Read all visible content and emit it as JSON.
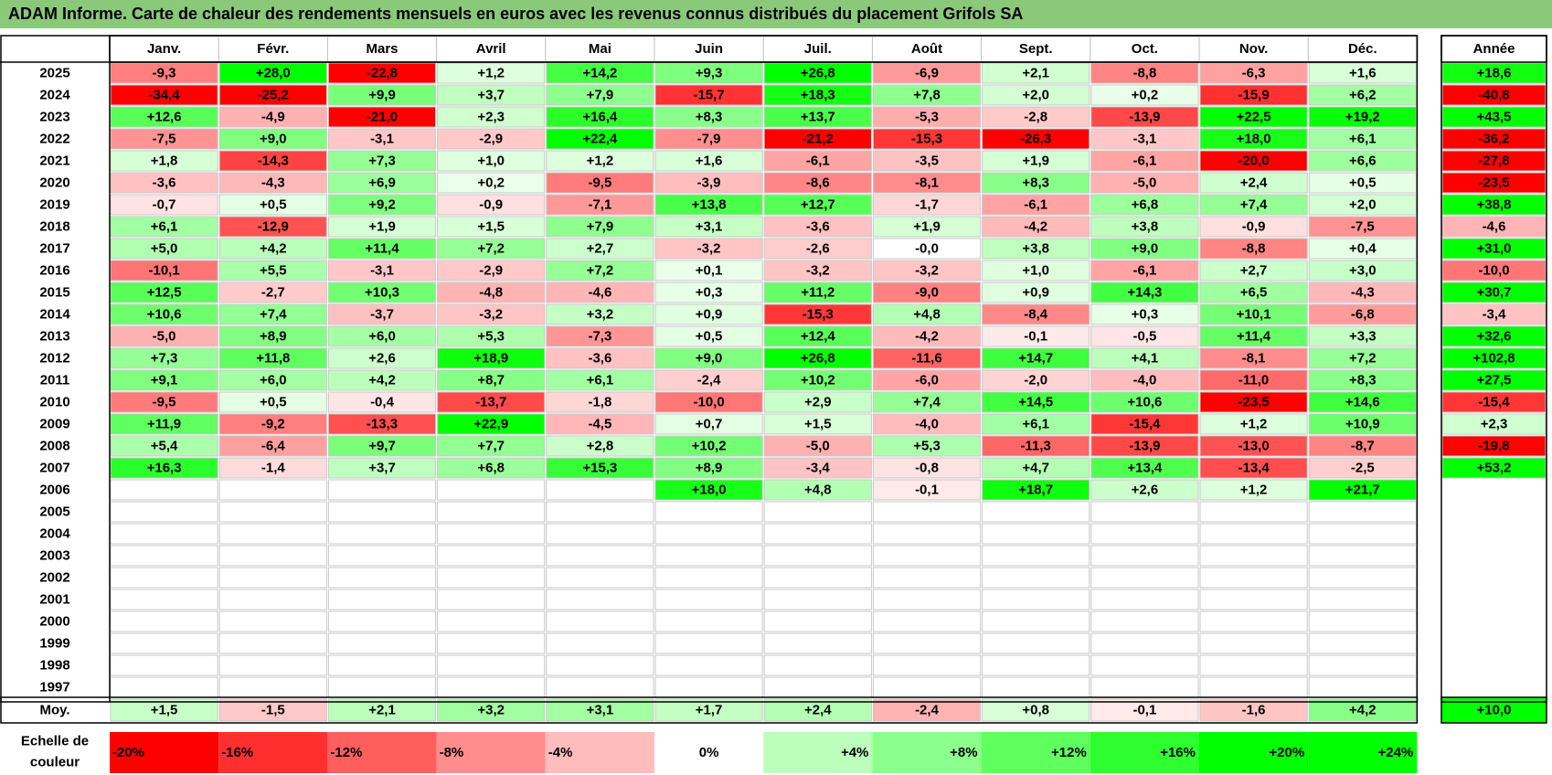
{
  "title": "ADAM Informe. Carte de chaleur des rendements mensuels en euros avec les revenus connus distribués du placement Grifols SA",
  "colors": {
    "title_bg": "#8bc97a",
    "max_red": "#ff0000",
    "max_green": "#00ff00",
    "neutral": "#ffffff",
    "grid": "#bfbfbf",
    "frame": "#000000"
  },
  "chart_data": {
    "type": "heatmap",
    "months": [
      "Janv.",
      "Févr.",
      "Mars",
      "Avril",
      "Mai",
      "Juin",
      "Juil.",
      "Août",
      "Sept.",
      "Oct.",
      "Nov.",
      "Déc."
    ],
    "year_label": "Année",
    "years": [
      "2025",
      "2024",
      "2023",
      "2022",
      "2021",
      "2020",
      "2019",
      "2018",
      "2017",
      "2016",
      "2015",
      "2014",
      "2013",
      "2012",
      "2011",
      "2010",
      "2009",
      "2008",
      "2007",
      "2006",
      "2005",
      "2004",
      "2003",
      "2002",
      "2001",
      "2000",
      "1999",
      "1998",
      "1997"
    ],
    "values": [
      [
        "-9,3",
        "+28,0",
        "-22,8",
        "+1,2",
        "+14,2",
        "+9,3",
        "+26,8",
        "-6,9",
        "+2,1",
        "-8,8",
        "-6,3",
        "+1,6"
      ],
      [
        "-34,4",
        "-25,2",
        "+9,9",
        "+3,7",
        "+7,9",
        "-15,7",
        "+18,3",
        "+7,8",
        "+2,0",
        "+0,2",
        "-15,9",
        "+6,2"
      ],
      [
        "+12,6",
        "-4,9",
        "-21,0",
        "+2,3",
        "+16,4",
        "+8,3",
        "+13,7",
        "-5,3",
        "-2,8",
        "-13,9",
        "+22,5",
        "+19,2"
      ],
      [
        "-7,5",
        "+9,0",
        "-3,1",
        "-2,9",
        "+22,4",
        "-7,9",
        "-21,2",
        "-15,3",
        "-26,3",
        "-3,1",
        "+18,0",
        "+6,1"
      ],
      [
        "+1,8",
        "-14,3",
        "+7,3",
        "+1,0",
        "+1,2",
        "+1,6",
        "-6,1",
        "-3,5",
        "+1,9",
        "-6,1",
        "-20,0",
        "+6,6"
      ],
      [
        "-3,6",
        "-4,3",
        "+6,9",
        "+0,2",
        "-9,5",
        "-3,9",
        "-8,6",
        "-8,1",
        "+8,3",
        "-5,0",
        "+2,4",
        "+0,5"
      ],
      [
        "-0,7",
        "+0,5",
        "+9,2",
        "-0,9",
        "-7,1",
        "+13,8",
        "+12,7",
        "-1,7",
        "-6,1",
        "+6,8",
        "+7,4",
        "+2,0"
      ],
      [
        "+6,1",
        "-12,9",
        "+1,9",
        "+1,5",
        "+7,9",
        "+3,1",
        "-3,6",
        "+1,9",
        "-4,2",
        "+3,8",
        "-0,9",
        "-7,5"
      ],
      [
        "+5,0",
        "+4,2",
        "+11,4",
        "+7,2",
        "+2,7",
        "-3,2",
        "-2,6",
        "-0,0",
        "+3,8",
        "+9,0",
        "-8,8",
        "+0,4"
      ],
      [
        "-10,1",
        "+5,5",
        "-3,1",
        "-2,9",
        "+7,2",
        "+0,1",
        "-3,2",
        "-3,2",
        "+1,0",
        "-6,1",
        "+2,7",
        "+3,0"
      ],
      [
        "+12,5",
        "-2,7",
        "+10,3",
        "-4,8",
        "-4,6",
        "+0,3",
        "+11,2",
        "-9,0",
        "+0,9",
        "+14,3",
        "+6,5",
        "-4,3"
      ],
      [
        "+10,6",
        "+7,4",
        "-3,7",
        "-3,2",
        "+3,2",
        "+0,9",
        "-15,3",
        "+4,8",
        "-8,4",
        "+0,3",
        "+10,1",
        "-6,8"
      ],
      [
        "-5,0",
        "+8,9",
        "+6,0",
        "+5,3",
        "-7,3",
        "+0,5",
        "+12,4",
        "-4,2",
        "-0,1",
        "-0,5",
        "+11,4",
        "+3,3"
      ],
      [
        "+7,3",
        "+11,8",
        "+2,6",
        "+18,9",
        "-3,6",
        "+9,0",
        "+26,8",
        "-11,6",
        "+14,7",
        "+4,1",
        "-8,1",
        "+7,2"
      ],
      [
        "+9,1",
        "+6,0",
        "+4,2",
        "+8,7",
        "+6,1",
        "-2,4",
        "+10,2",
        "-6,0",
        "-2,0",
        "-4,0",
        "-11,0",
        "+8,3"
      ],
      [
        "-9,5",
        "+0,5",
        "-0,4",
        "-13,7",
        "-1,8",
        "-10,0",
        "+2,9",
        "+7,4",
        "+14,5",
        "+10,6",
        "-23,5",
        "+14,6"
      ],
      [
        "+11,9",
        "-9,2",
        "-13,3",
        "+22,9",
        "-4,5",
        "+0,7",
        "+1,5",
        "-4,0",
        "+6,1",
        "-15,4",
        "+1,2",
        "+10,9"
      ],
      [
        "+5,4",
        "-6,4",
        "+9,7",
        "+7,7",
        "+2,8",
        "+10,2",
        "-5,0",
        "+5,3",
        "-11,3",
        "-13,9",
        "-13,0",
        "-8,7"
      ],
      [
        "+16,3",
        "-1,4",
        "+3,7",
        "+6,8",
        "+15,3",
        "+8,9",
        "-3,4",
        "-0,8",
        "+4,7",
        "+13,4",
        "-13,4",
        "-2,5"
      ],
      [
        "",
        "",
        "",
        "",
        "",
        "+18,0",
        "+4,8",
        "-0,1",
        "+18,7",
        "+2,6",
        "+1,2",
        "+21,7"
      ],
      [
        "",
        "",
        "",
        "",
        "",
        "",
        "",
        "",
        "",
        "",
        "",
        ""
      ],
      [
        "",
        "",
        "",
        "",
        "",
        "",
        "",
        "",
        "",
        "",
        "",
        ""
      ],
      [
        "",
        "",
        "",
        "",
        "",
        "",
        "",
        "",
        "",
        "",
        "",
        ""
      ],
      [
        "",
        "",
        "",
        "",
        "",
        "",
        "",
        "",
        "",
        "",
        "",
        ""
      ],
      [
        "",
        "",
        "",
        "",
        "",
        "",
        "",
        "",
        "",
        "",
        "",
        ""
      ],
      [
        "",
        "",
        "",
        "",
        "",
        "",
        "",
        "",
        "",
        "",
        "",
        ""
      ],
      [
        "",
        "",
        "",
        "",
        "",
        "",
        "",
        "",
        "",
        "",
        "",
        ""
      ],
      [
        "",
        "",
        "",
        "",
        "",
        "",
        "",
        "",
        "",
        "",
        "",
        ""
      ],
      [
        "",
        "",
        "",
        "",
        "",
        "",
        "",
        "",
        "",
        "",
        "",
        ""
      ]
    ],
    "annual": [
      "+18,6",
      "-40,8",
      "+43,5",
      "-36,2",
      "-27,8",
      "-23,5",
      "+38,8",
      "-4,6",
      "+31,0",
      "-10,0",
      "+30,7",
      "-3,4",
      "+32,6",
      "+102,8",
      "+27,5",
      "-15,4",
      "+2,3",
      "-19,8",
      "+53,2",
      "",
      "",
      "",
      "",
      "",
      "",
      "",
      "",
      "",
      ""
    ],
    "average_label": "Moy.",
    "average": [
      "+1,5",
      "-1,5",
      "+2,1",
      "+3,2",
      "+3,1",
      "+1,7",
      "+2,4",
      "-2,4",
      "+0,8",
      "-0,1",
      "-1,6",
      "+4,2"
    ],
    "average_annual": "+10,0",
    "scale_label": [
      "Echelle de",
      "couleur"
    ],
    "scale": [
      {
        "label": "-20%",
        "value": -20
      },
      {
        "label": "-16%",
        "value": -16
      },
      {
        "label": "-12%",
        "value": -12
      },
      {
        "label": "-8%",
        "value": -8
      },
      {
        "label": "-4%",
        "value": -4
      },
      {
        "label": "0%",
        "value": 0
      },
      {
        "label": "+4%",
        "value": 4
      },
      {
        "label": "+8%",
        "value": 8
      },
      {
        "label": "+12%",
        "value": 12
      },
      {
        "label": "+16%",
        "value": 16
      },
      {
        "label": "+20%",
        "value": 20
      },
      {
        "label": "+24%",
        "value": 24
      }
    ]
  }
}
